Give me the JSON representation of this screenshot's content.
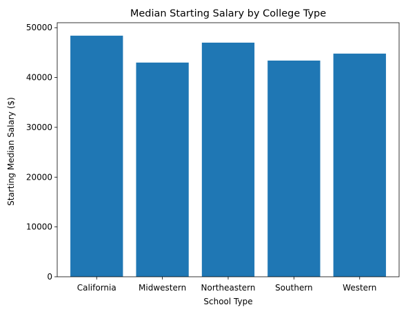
{
  "chart_data": {
    "type": "bar",
    "title": "Median Starting Salary by College Type",
    "xlabel": "School Type",
    "ylabel": "Starting Median Salary ($)",
    "categories": [
      "California",
      "Midwestern",
      "Northeastern",
      "Southern",
      "Western"
    ],
    "values": [
      48400,
      43000,
      47000,
      43400,
      44800
    ],
    "ylim": [
      0,
      51000
    ],
    "yticks": [
      0,
      10000,
      20000,
      30000,
      40000,
      50000
    ],
    "grid": false,
    "bar_color": "#1f77b4"
  }
}
